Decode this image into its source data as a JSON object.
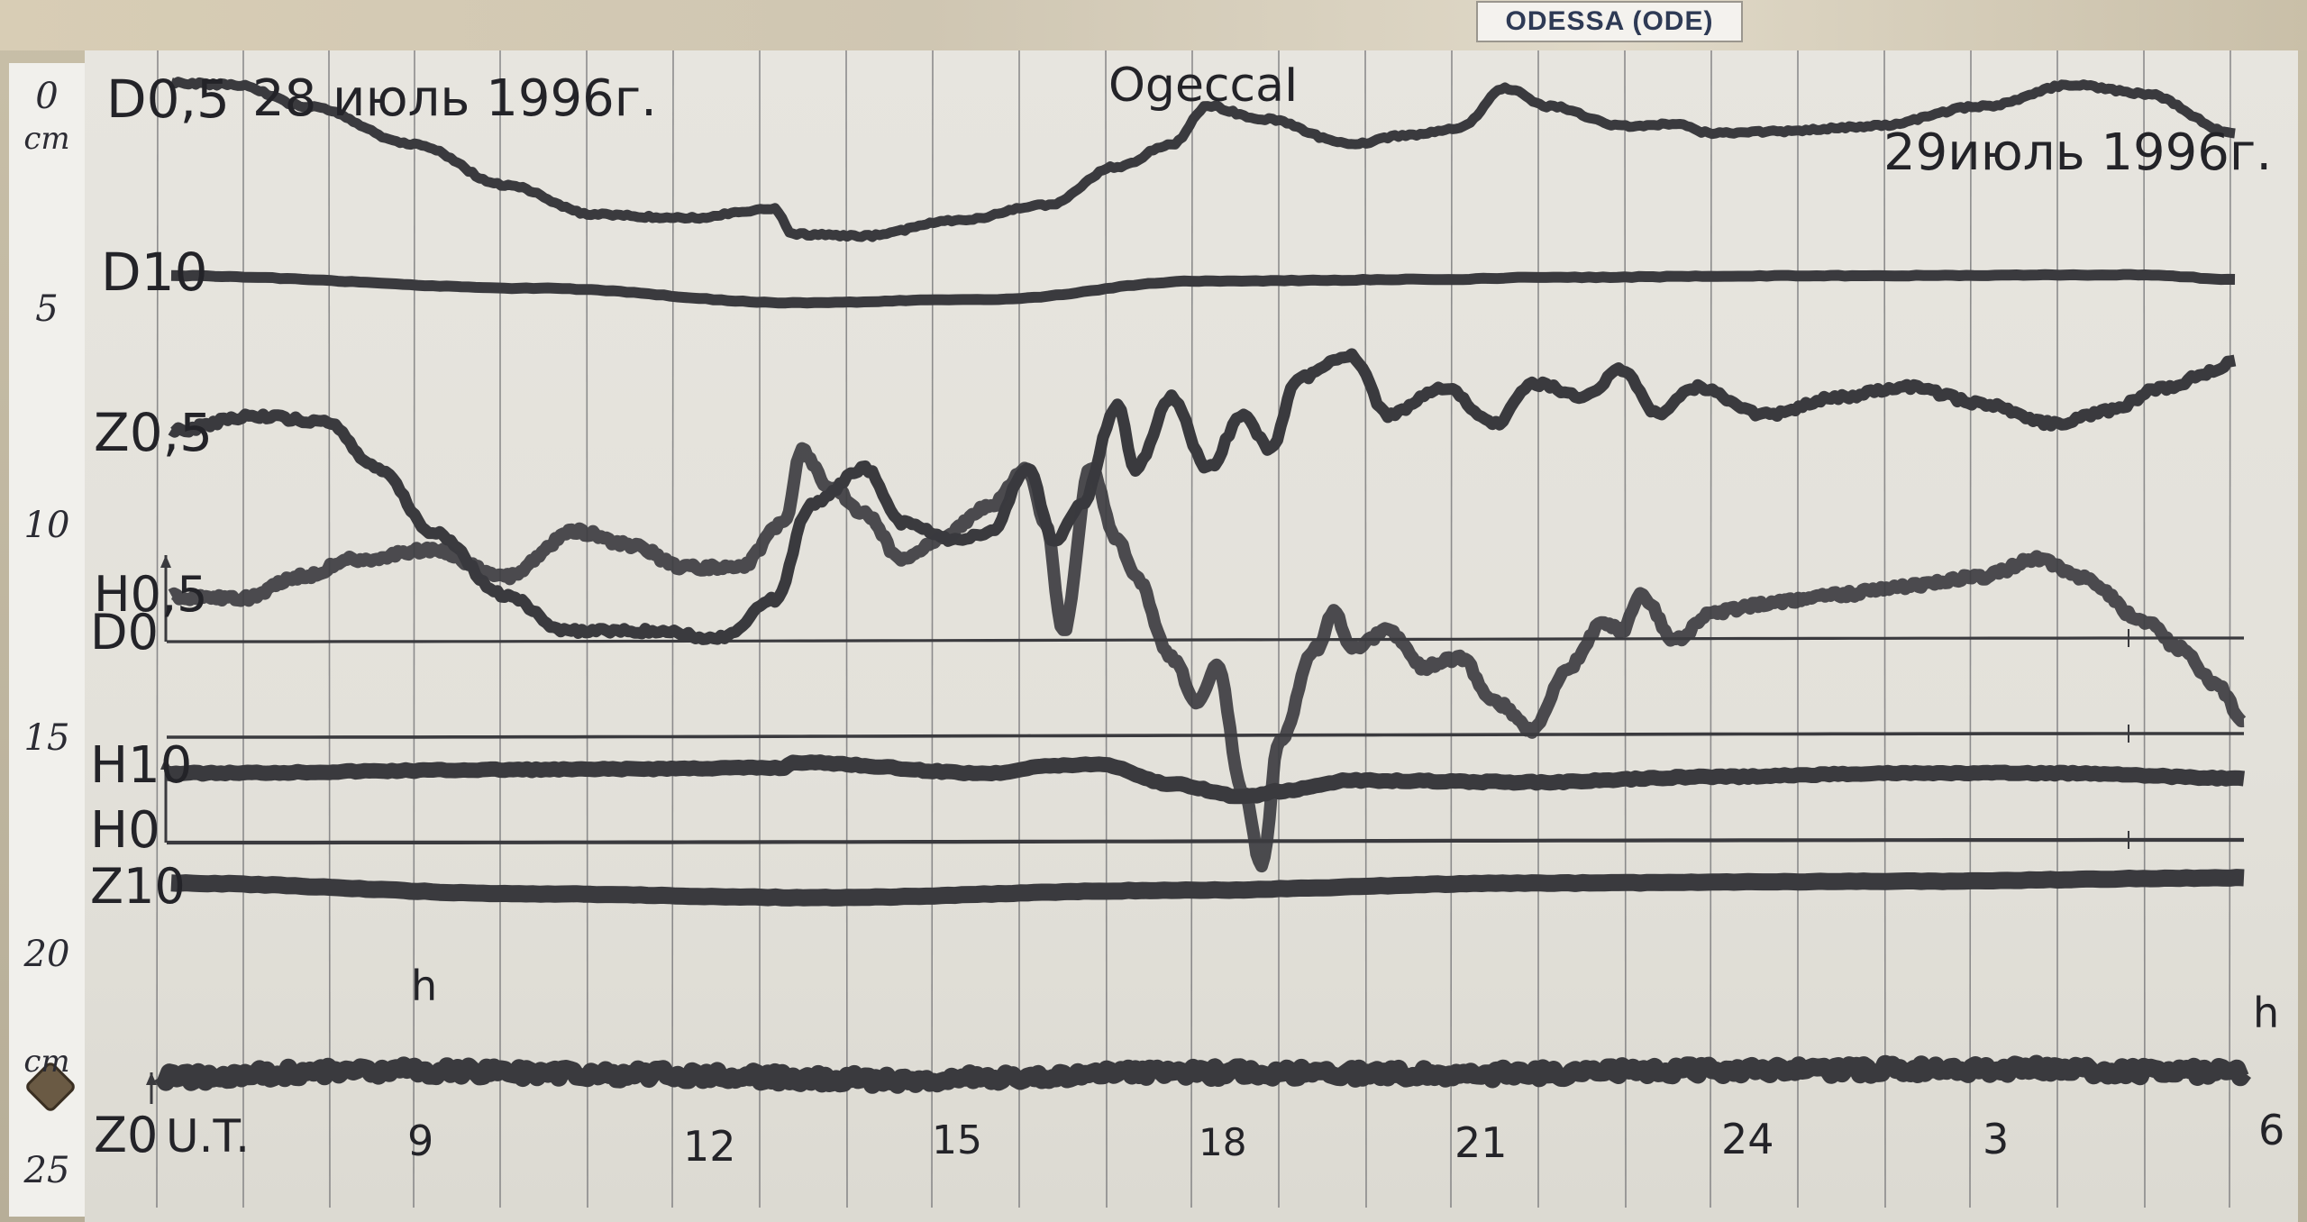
{
  "station_label": "ODESSA (ODE)",
  "header": {
    "date_left": "28 июль 1996г.",
    "title": "OgeccaI",
    "date_right": "29июль 1996г."
  },
  "ruler": {
    "top_unit": "cm",
    "ticks": [
      "0",
      "5",
      "10",
      "15",
      "20",
      "25"
    ],
    "lower_unit": "cm"
  },
  "trace_labels": [
    "D0,5",
    "D10",
    "Z0,5",
    "H0,5",
    "D0",
    "H10",
    "H0",
    "Z10",
    "Z0"
  ],
  "time_axis": {
    "start_label": "U.T.",
    "unit": "h",
    "ticks": [
      "9",
      "12",
      "15",
      "18",
      "21",
      "24",
      "3",
      "6"
    ]
  },
  "colors": {
    "paper": "#e5e3dc",
    "trace": "#3a3a3e",
    "grid": "#6f6f72",
    "label_text": "#2e3a55"
  }
}
